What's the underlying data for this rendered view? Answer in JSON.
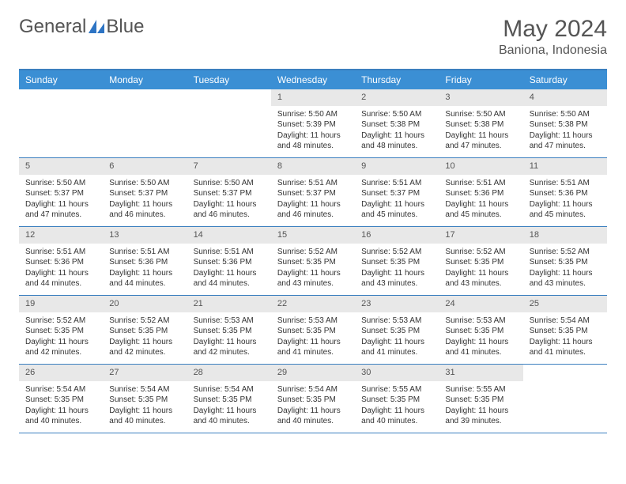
{
  "brand": {
    "part1": "General",
    "part2": "Blue",
    "accent_color": "#2d74c4"
  },
  "title": "May 2024",
  "location": "Baniona, Indonesia",
  "colors": {
    "header_bar": "#3b8fd4",
    "border": "#3b7fbf",
    "daynum_bg": "#e8e8e8",
    "text": "#333333",
    "muted": "#555555"
  },
  "weekdays": [
    "Sunday",
    "Monday",
    "Tuesday",
    "Wednesday",
    "Thursday",
    "Friday",
    "Saturday"
  ],
  "weeks": [
    [
      null,
      null,
      null,
      {
        "n": "1",
        "sr": "5:50 AM",
        "ss": "5:39 PM",
        "dl": "11 hours and 48 minutes."
      },
      {
        "n": "2",
        "sr": "5:50 AM",
        "ss": "5:38 PM",
        "dl": "11 hours and 48 minutes."
      },
      {
        "n": "3",
        "sr": "5:50 AM",
        "ss": "5:38 PM",
        "dl": "11 hours and 47 minutes."
      },
      {
        "n": "4",
        "sr": "5:50 AM",
        "ss": "5:38 PM",
        "dl": "11 hours and 47 minutes."
      }
    ],
    [
      {
        "n": "5",
        "sr": "5:50 AM",
        "ss": "5:37 PM",
        "dl": "11 hours and 47 minutes."
      },
      {
        "n": "6",
        "sr": "5:50 AM",
        "ss": "5:37 PM",
        "dl": "11 hours and 46 minutes."
      },
      {
        "n": "7",
        "sr": "5:50 AM",
        "ss": "5:37 PM",
        "dl": "11 hours and 46 minutes."
      },
      {
        "n": "8",
        "sr": "5:51 AM",
        "ss": "5:37 PM",
        "dl": "11 hours and 46 minutes."
      },
      {
        "n": "9",
        "sr": "5:51 AM",
        "ss": "5:37 PM",
        "dl": "11 hours and 45 minutes."
      },
      {
        "n": "10",
        "sr": "5:51 AM",
        "ss": "5:36 PM",
        "dl": "11 hours and 45 minutes."
      },
      {
        "n": "11",
        "sr": "5:51 AM",
        "ss": "5:36 PM",
        "dl": "11 hours and 45 minutes."
      }
    ],
    [
      {
        "n": "12",
        "sr": "5:51 AM",
        "ss": "5:36 PM",
        "dl": "11 hours and 44 minutes."
      },
      {
        "n": "13",
        "sr": "5:51 AM",
        "ss": "5:36 PM",
        "dl": "11 hours and 44 minutes."
      },
      {
        "n": "14",
        "sr": "5:51 AM",
        "ss": "5:36 PM",
        "dl": "11 hours and 44 minutes."
      },
      {
        "n": "15",
        "sr": "5:52 AM",
        "ss": "5:35 PM",
        "dl": "11 hours and 43 minutes."
      },
      {
        "n": "16",
        "sr": "5:52 AM",
        "ss": "5:35 PM",
        "dl": "11 hours and 43 minutes."
      },
      {
        "n": "17",
        "sr": "5:52 AM",
        "ss": "5:35 PM",
        "dl": "11 hours and 43 minutes."
      },
      {
        "n": "18",
        "sr": "5:52 AM",
        "ss": "5:35 PM",
        "dl": "11 hours and 43 minutes."
      }
    ],
    [
      {
        "n": "19",
        "sr": "5:52 AM",
        "ss": "5:35 PM",
        "dl": "11 hours and 42 minutes."
      },
      {
        "n": "20",
        "sr": "5:52 AM",
        "ss": "5:35 PM",
        "dl": "11 hours and 42 minutes."
      },
      {
        "n": "21",
        "sr": "5:53 AM",
        "ss": "5:35 PM",
        "dl": "11 hours and 42 minutes."
      },
      {
        "n": "22",
        "sr": "5:53 AM",
        "ss": "5:35 PM",
        "dl": "11 hours and 41 minutes."
      },
      {
        "n": "23",
        "sr": "5:53 AM",
        "ss": "5:35 PM",
        "dl": "11 hours and 41 minutes."
      },
      {
        "n": "24",
        "sr": "5:53 AM",
        "ss": "5:35 PM",
        "dl": "11 hours and 41 minutes."
      },
      {
        "n": "25",
        "sr": "5:54 AM",
        "ss": "5:35 PM",
        "dl": "11 hours and 41 minutes."
      }
    ],
    [
      {
        "n": "26",
        "sr": "5:54 AM",
        "ss": "5:35 PM",
        "dl": "11 hours and 40 minutes."
      },
      {
        "n": "27",
        "sr": "5:54 AM",
        "ss": "5:35 PM",
        "dl": "11 hours and 40 minutes."
      },
      {
        "n": "28",
        "sr": "5:54 AM",
        "ss": "5:35 PM",
        "dl": "11 hours and 40 minutes."
      },
      {
        "n": "29",
        "sr": "5:54 AM",
        "ss": "5:35 PM",
        "dl": "11 hours and 40 minutes."
      },
      {
        "n": "30",
        "sr": "5:55 AM",
        "ss": "5:35 PM",
        "dl": "11 hours and 40 minutes."
      },
      {
        "n": "31",
        "sr": "5:55 AM",
        "ss": "5:35 PM",
        "dl": "11 hours and 39 minutes."
      },
      null
    ]
  ],
  "labels": {
    "sunrise": "Sunrise:",
    "sunset": "Sunset:",
    "daylight": "Daylight:"
  }
}
